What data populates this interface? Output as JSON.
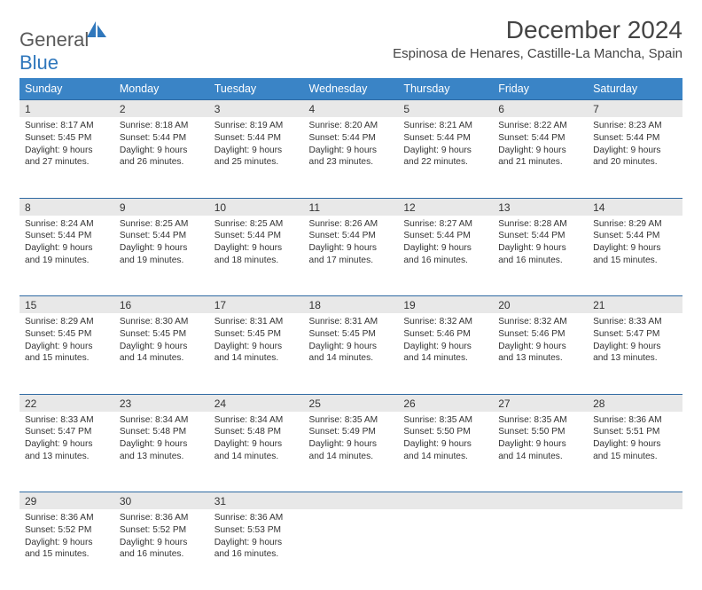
{
  "logo": {
    "word1": "General",
    "word2": "Blue"
  },
  "title": "December 2024",
  "location": "Espinosa de Henares, Castille-La Mancha, Spain",
  "colors": {
    "header_bg": "#3a84c6",
    "header_text": "#ffffff",
    "row_divider": "#2f6aa3",
    "daynum_bg": "#e8e8e8",
    "body_text": "#333333",
    "logo_gray": "#5a5a5a",
    "logo_blue": "#2f77bc",
    "page_bg": "#ffffff"
  },
  "weekdays": [
    "Sunday",
    "Monday",
    "Tuesday",
    "Wednesday",
    "Thursday",
    "Friday",
    "Saturday"
  ],
  "weeks": [
    [
      {
        "n": "1",
        "sr": "8:17 AM",
        "ss": "5:45 PM",
        "dl": "9 hours and 27 minutes."
      },
      {
        "n": "2",
        "sr": "8:18 AM",
        "ss": "5:44 PM",
        "dl": "9 hours and 26 minutes."
      },
      {
        "n": "3",
        "sr": "8:19 AM",
        "ss": "5:44 PM",
        "dl": "9 hours and 25 minutes."
      },
      {
        "n": "4",
        "sr": "8:20 AM",
        "ss": "5:44 PM",
        "dl": "9 hours and 23 minutes."
      },
      {
        "n": "5",
        "sr": "8:21 AM",
        "ss": "5:44 PM",
        "dl": "9 hours and 22 minutes."
      },
      {
        "n": "6",
        "sr": "8:22 AM",
        "ss": "5:44 PM",
        "dl": "9 hours and 21 minutes."
      },
      {
        "n": "7",
        "sr": "8:23 AM",
        "ss": "5:44 PM",
        "dl": "9 hours and 20 minutes."
      }
    ],
    [
      {
        "n": "8",
        "sr": "8:24 AM",
        "ss": "5:44 PM",
        "dl": "9 hours and 19 minutes."
      },
      {
        "n": "9",
        "sr": "8:25 AM",
        "ss": "5:44 PM",
        "dl": "9 hours and 19 minutes."
      },
      {
        "n": "10",
        "sr": "8:25 AM",
        "ss": "5:44 PM",
        "dl": "9 hours and 18 minutes."
      },
      {
        "n": "11",
        "sr": "8:26 AM",
        "ss": "5:44 PM",
        "dl": "9 hours and 17 minutes."
      },
      {
        "n": "12",
        "sr": "8:27 AM",
        "ss": "5:44 PM",
        "dl": "9 hours and 16 minutes."
      },
      {
        "n": "13",
        "sr": "8:28 AM",
        "ss": "5:44 PM",
        "dl": "9 hours and 16 minutes."
      },
      {
        "n": "14",
        "sr": "8:29 AM",
        "ss": "5:44 PM",
        "dl": "9 hours and 15 minutes."
      }
    ],
    [
      {
        "n": "15",
        "sr": "8:29 AM",
        "ss": "5:45 PM",
        "dl": "9 hours and 15 minutes."
      },
      {
        "n": "16",
        "sr": "8:30 AM",
        "ss": "5:45 PM",
        "dl": "9 hours and 14 minutes."
      },
      {
        "n": "17",
        "sr": "8:31 AM",
        "ss": "5:45 PM",
        "dl": "9 hours and 14 minutes."
      },
      {
        "n": "18",
        "sr": "8:31 AM",
        "ss": "5:45 PM",
        "dl": "9 hours and 14 minutes."
      },
      {
        "n": "19",
        "sr": "8:32 AM",
        "ss": "5:46 PM",
        "dl": "9 hours and 14 minutes."
      },
      {
        "n": "20",
        "sr": "8:32 AM",
        "ss": "5:46 PM",
        "dl": "9 hours and 13 minutes."
      },
      {
        "n": "21",
        "sr": "8:33 AM",
        "ss": "5:47 PM",
        "dl": "9 hours and 13 minutes."
      }
    ],
    [
      {
        "n": "22",
        "sr": "8:33 AM",
        "ss": "5:47 PM",
        "dl": "9 hours and 13 minutes."
      },
      {
        "n": "23",
        "sr": "8:34 AM",
        "ss": "5:48 PM",
        "dl": "9 hours and 13 minutes."
      },
      {
        "n": "24",
        "sr": "8:34 AM",
        "ss": "5:48 PM",
        "dl": "9 hours and 14 minutes."
      },
      {
        "n": "25",
        "sr": "8:35 AM",
        "ss": "5:49 PM",
        "dl": "9 hours and 14 minutes."
      },
      {
        "n": "26",
        "sr": "8:35 AM",
        "ss": "5:50 PM",
        "dl": "9 hours and 14 minutes."
      },
      {
        "n": "27",
        "sr": "8:35 AM",
        "ss": "5:50 PM",
        "dl": "9 hours and 14 minutes."
      },
      {
        "n": "28",
        "sr": "8:36 AM",
        "ss": "5:51 PM",
        "dl": "9 hours and 15 minutes."
      }
    ],
    [
      {
        "n": "29",
        "sr": "8:36 AM",
        "ss": "5:52 PM",
        "dl": "9 hours and 15 minutes."
      },
      {
        "n": "30",
        "sr": "8:36 AM",
        "ss": "5:52 PM",
        "dl": "9 hours and 16 minutes."
      },
      {
        "n": "31",
        "sr": "8:36 AM",
        "ss": "5:53 PM",
        "dl": "9 hours and 16 minutes."
      },
      null,
      null,
      null,
      null
    ]
  ],
  "labels": {
    "sunrise": "Sunrise:",
    "sunset": "Sunset:",
    "daylight": "Daylight:"
  }
}
